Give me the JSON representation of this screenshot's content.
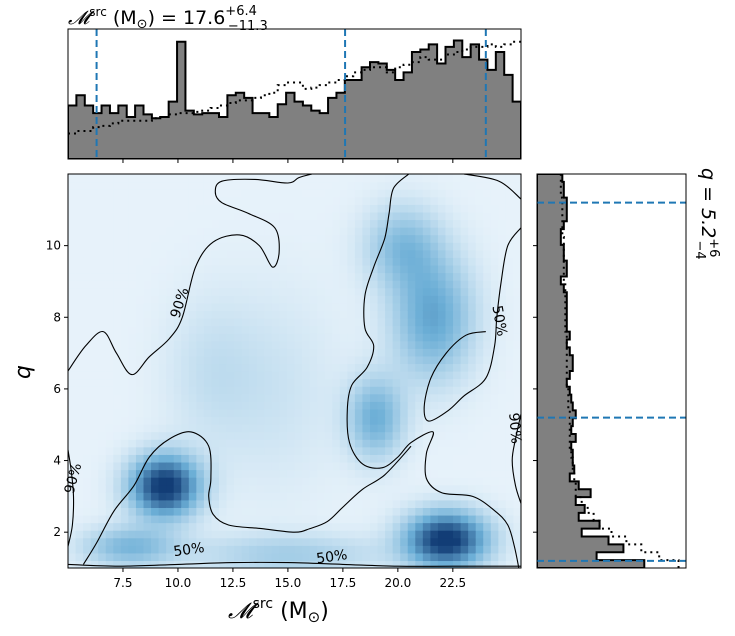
{
  "chart_data": {
    "type": "heatmap",
    "top_title": {
      "lhs": "𝓜",
      "sup": "src",
      "unit": " (M",
      "sun": "⊙",
      "rest": ") = 17.6",
      "plus": "+6.4",
      "minus": "−11.3"
    },
    "right_title": {
      "lhs": "q = 5.2",
      "plus": "+6",
      "minus": "−4"
    },
    "xlabel": {
      "main": "𝓜",
      "sup": "src",
      "unit": " (M",
      "sun": "⊙",
      "close": ")"
    },
    "ylabel": "q",
    "xlim": [
      5.0,
      25.6
    ],
    "ylim": [
      1.0,
      12.0
    ],
    "xticks": [
      "7.5",
      "10.0",
      "12.5",
      "15.0",
      "17.5",
      "20.0",
      "22.5"
    ],
    "xtick_values": [
      7.5,
      10.0,
      12.5,
      15.0,
      17.5,
      20.0,
      22.5
    ],
    "yticks": [
      "2",
      "4",
      "6",
      "8",
      "10"
    ],
    "ytick_values": [
      2,
      4,
      6,
      8,
      10
    ],
    "top_hist_lines": [
      6.3,
      17.6,
      24.0
    ],
    "right_hist_lines": [
      1.2,
      5.2,
      11.2
    ],
    "density_peaks": [
      {
        "x": 9.4,
        "y": 3.3,
        "amp": 1.0,
        "sx": 1.1,
        "sy": 0.6
      },
      {
        "x": 22.2,
        "y": 1.8,
        "amp": 1.0,
        "sx": 1.3,
        "sy": 0.55
      },
      {
        "x": 21.6,
        "y": 8.0,
        "amp": 0.5,
        "sx": 1.3,
        "sy": 1.2
      },
      {
        "x": 20.2,
        "y": 10.0,
        "amp": 0.35,
        "sx": 1.2,
        "sy": 0.8
      },
      {
        "x": 19.0,
        "y": 5.2,
        "amp": 0.45,
        "sx": 0.9,
        "sy": 0.8
      },
      {
        "x": 7.8,
        "y": 1.6,
        "amp": 0.4,
        "sx": 1.5,
        "sy": 0.4
      },
      {
        "x": 15.0,
        "y": 1.4,
        "amp": 0.25,
        "sx": 3.0,
        "sy": 0.4
      },
      {
        "x": 11.5,
        "y": 6.5,
        "amp": 0.12,
        "sx": 1.5,
        "sy": 1.5
      },
      {
        "x": 14.5,
        "y": 6.0,
        "amp": 0.1,
        "sx": 2.0,
        "sy": 2.0
      }
    ],
    "contour_labels": [
      {
        "text": "90%",
        "x": 10.1,
        "y": 8.4,
        "rotate": -72
      },
      {
        "text": "50%",
        "x": 24.6,
        "y": 7.9,
        "rotate": 80
      },
      {
        "text": "90%",
        "x": 25.3,
        "y": 4.9,
        "rotate": 85
      },
      {
        "text": "90%",
        "x": 5.25,
        "y": 3.5,
        "rotate": -75
      },
      {
        "text": "50%",
        "x": 10.5,
        "y": 1.5,
        "rotate": -8
      },
      {
        "text": "50%",
        "x": 17.0,
        "y": 1.3,
        "rotate": -8
      }
    ],
    "contour_90_outer": [
      [
        5.0,
        6.5
      ],
      [
        5.8,
        7.2
      ],
      [
        6.6,
        7.6
      ],
      [
        7.2,
        7.0
      ],
      [
        7.9,
        6.4
      ],
      [
        8.7,
        6.9
      ],
      [
        9.6,
        7.4
      ],
      [
        10.2,
        8.0
      ],
      [
        10.8,
        9.4
      ],
      [
        11.6,
        10.1
      ],
      [
        12.8,
        10.3
      ],
      [
        13.7,
        10.0
      ],
      [
        14.3,
        9.4
      ],
      [
        14.6,
        9.8
      ],
      [
        14.4,
        10.5
      ],
      [
        13.2,
        10.9
      ],
      [
        12.0,
        11.2
      ],
      [
        11.7,
        11.5
      ],
      [
        12.0,
        11.8
      ],
      [
        13.5,
        11.85
      ],
      [
        15.0,
        11.75
      ],
      [
        15.5,
        11.9
      ],
      [
        16.1,
        12.0
      ]
    ],
    "contour_90_right": [
      [
        23.0,
        12.0
      ],
      [
        24.6,
        11.8
      ],
      [
        25.6,
        11.3
      ]
    ],
    "contour_90_left_bottom": [
      [
        5.0,
        4.3
      ],
      [
        5.15,
        3.7
      ],
      [
        5.25,
        3.0
      ],
      [
        5.2,
        2.2
      ],
      [
        5.0,
        1.6
      ]
    ],
    "contour_90_right_bottom": [
      [
        25.6,
        5.3
      ],
      [
        25.35,
        4.6
      ],
      [
        25.2,
        4.0
      ],
      [
        25.35,
        3.3
      ],
      [
        25.6,
        2.8
      ]
    ],
    "contour_50_middle": [
      [
        20.5,
        12.0
      ],
      [
        19.8,
        11.6
      ],
      [
        19.6,
        10.9
      ],
      [
        19.4,
        10.2
      ],
      [
        18.9,
        9.4
      ],
      [
        18.5,
        8.6
      ],
      [
        18.5,
        7.7
      ],
      [
        18.9,
        7.2
      ],
      [
        18.6,
        6.6
      ],
      [
        17.9,
        6.1
      ],
      [
        17.7,
        5.4
      ],
      [
        17.8,
        4.5
      ],
      [
        18.4,
        3.9
      ],
      [
        19.3,
        3.8
      ],
      [
        20.0,
        4.1
      ],
      [
        20.6,
        4.5
      ],
      [
        21.6,
        4.8
      ],
      [
        21.3,
        4.2
      ],
      [
        21.3,
        3.5
      ],
      [
        22.0,
        3.1
      ],
      [
        23.4,
        3.0
      ],
      [
        24.4,
        2.6
      ],
      [
        25.0,
        2.2
      ],
      [
        25.3,
        1.6
      ],
      [
        25.5,
        1.0
      ]
    ],
    "contour_50_inner_right": [
      [
        25.6,
        10.5
      ],
      [
        25.0,
        10.0
      ],
      [
        24.7,
        9.0
      ],
      [
        24.5,
        8.0
      ],
      [
        24.4,
        7.2
      ],
      [
        24.0,
        6.3
      ],
      [
        23.0,
        5.8
      ],
      [
        22.3,
        5.4
      ],
      [
        21.4,
        5.1
      ],
      [
        21.2,
        5.5
      ],
      [
        21.5,
        6.3
      ],
      [
        22.2,
        7.0
      ],
      [
        23.1,
        7.5
      ],
      [
        24.0,
        7.6
      ]
    ],
    "contour_50_bottom": [
      [
        5.7,
        1.1
      ],
      [
        6.3,
        1.7
      ],
      [
        7.1,
        2.6
      ],
      [
        8.0,
        3.3
      ],
      [
        8.7,
        4.1
      ],
      [
        9.6,
        4.6
      ],
      [
        10.6,
        4.8
      ],
      [
        11.4,
        4.4
      ],
      [
        11.5,
        3.5
      ],
      [
        11.4,
        3.0
      ],
      [
        11.6,
        2.5
      ],
      [
        12.3,
        2.2
      ],
      [
        13.8,
        2.1
      ],
      [
        15.3,
        2.0
      ],
      [
        16.0,
        2.1
      ],
      [
        16.8,
        2.3
      ],
      [
        17.5,
        2.7
      ],
      [
        18.4,
        3.2
      ],
      [
        19.4,
        3.6
      ],
      [
        20.6,
        4.4
      ]
    ],
    "contour_50_floor": [
      [
        5.0,
        1.1
      ],
      [
        7.3,
        1.05
      ],
      [
        10.0,
        1.1
      ],
      [
        12.5,
        1.15
      ],
      [
        15.0,
        1.15
      ],
      [
        17.5,
        1.1
      ],
      [
        20.0,
        1.05
      ],
      [
        22.5,
        1.05
      ],
      [
        25.6,
        1.05
      ]
    ],
    "top_hist_solid_heights": [
      0.42,
      0.5,
      0.42,
      0.36,
      0.42,
      0.36,
      0.42,
      0.33,
      0.42,
      0.35,
      0.32,
      0.33,
      0.45,
      0.92,
      0.38,
      0.35,
      0.36,
      0.36,
      0.33,
      0.5,
      0.52,
      0.48,
      0.36,
      0.36,
      0.33,
      0.43,
      0.52,
      0.45,
      0.42,
      0.38,
      0.36,
      0.48,
      0.52,
      0.62,
      0.62,
      0.72,
      0.76,
      0.75,
      0.7,
      0.62,
      0.68,
      0.84,
      0.86,
      0.9,
      0.75,
      0.88,
      0.93,
      0.8,
      0.9,
      0.78,
      0.7,
      0.84,
      0.66,
      0.45
    ],
    "top_hist_dotted_heights": [
      0.2,
      0.22,
      0.22,
      0.25,
      0.26,
      0.28,
      0.3,
      0.3,
      0.3,
      0.3,
      0.32,
      0.33,
      0.35,
      0.36,
      0.36,
      0.37,
      0.38,
      0.4,
      0.42,
      0.44,
      0.46,
      0.46,
      0.48,
      0.5,
      0.52,
      0.58,
      0.6,
      0.6,
      0.55,
      0.56,
      0.58,
      0.6,
      0.62,
      0.65,
      0.68,
      0.7,
      0.72,
      0.72,
      0.68,
      0.72,
      0.74,
      0.76,
      0.8,
      0.78,
      0.78,
      0.82,
      0.84,
      0.86,
      0.88,
      0.88,
      0.9,
      0.88,
      0.9,
      0.92
    ],
    "right_hist_solid_widths": [
      0.72,
      0.4,
      0.58,
      0.48,
      0.3,
      0.42,
      0.28,
      0.32,
      0.26,
      0.36,
      0.28,
      0.22,
      0.25,
      0.24,
      0.24,
      0.23,
      0.26,
      0.23,
      0.24,
      0.26,
      0.24,
      0.23,
      0.22,
      0.2,
      0.22,
      0.24,
      0.24,
      0.22,
      0.2,
      0.22,
      0.2,
      0.2,
      0.2,
      0.2,
      0.2,
      0.18,
      0.16,
      0.2,
      0.2,
      0.18,
      0.18,
      0.16,
      0.16,
      0.18,
      0.2,
      0.2,
      0.2,
      0.18,
      0.18,
      0.17
    ],
    "right_hist_dotted_widths": [
      0.95,
      0.82,
      0.7,
      0.6,
      0.5,
      0.42,
      0.38,
      0.34,
      0.3,
      0.26,
      0.26,
      0.25,
      0.24,
      0.24,
      0.23,
      0.22,
      0.22,
      0.22,
      0.22,
      0.22,
      0.21,
      0.21,
      0.21,
      0.2,
      0.2,
      0.2,
      0.2,
      0.2,
      0.2,
      0.2,
      0.19,
      0.19,
      0.19,
      0.19,
      0.19,
      0.19,
      0.18,
      0.18,
      0.18,
      0.18,
      0.18,
      0.18,
      0.17,
      0.17,
      0.17,
      0.17,
      0.17,
      0.16,
      0.16,
      0.16
    ],
    "colors": {
      "hist_fill": "#808080",
      "line_color": "#000000",
      "marker_lines": "#1f77b4",
      "cmap_low": "#f7fbff",
      "cmap_high": "#08306b"
    }
  }
}
